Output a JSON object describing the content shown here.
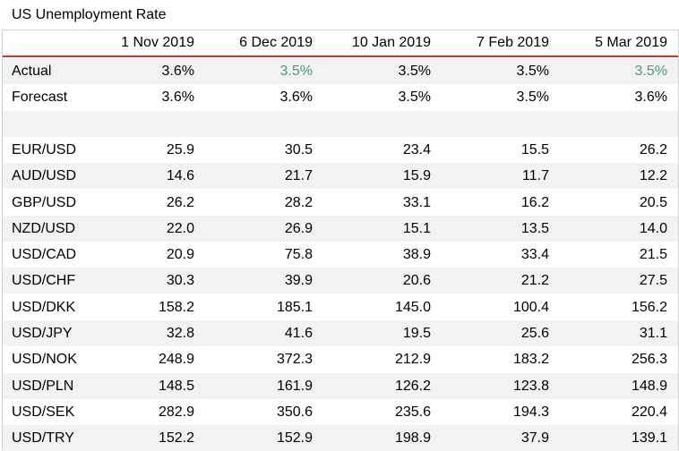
{
  "chart_data": {
    "type": "table",
    "title": "US Unemployment Rate",
    "columns": [
      "1 Nov 2019",
      "6 Dec 2019",
      "10 Jan 2019",
      "7 Feb 2019",
      "5 Mar 2019"
    ],
    "rows": [
      {
        "label": "Actual",
        "values": [
          "3.6%",
          "3.5%",
          "3.5%",
          "3.5%",
          "3.5%"
        ],
        "highlight": [
          false,
          true,
          false,
          false,
          true
        ]
      },
      {
        "label": "Forecast",
        "values": [
          "3.6%",
          "3.6%",
          "3.5%",
          "3.5%",
          "3.6%"
        ]
      },
      {
        "label": "",
        "values": [
          "",
          "",
          "",
          "",
          ""
        ],
        "spacer": true
      },
      {
        "label": "EUR/USD",
        "values": [
          "25.9",
          "30.5",
          "23.4",
          "15.5",
          "26.2"
        ]
      },
      {
        "label": "AUD/USD",
        "values": [
          "14.6",
          "21.7",
          "15.9",
          "11.7",
          "12.2"
        ]
      },
      {
        "label": "GBP/USD",
        "values": [
          "26.2",
          "28.2",
          "33.1",
          "16.2",
          "20.5"
        ]
      },
      {
        "label": "NZD/USD",
        "values": [
          "22.0",
          "26.9",
          "15.1",
          "13.5",
          "14.0"
        ]
      },
      {
        "label": "USD/CAD",
        "values": [
          "20.9",
          "75.8",
          "38.9",
          "33.4",
          "21.5"
        ]
      },
      {
        "label": "USD/CHF",
        "values": [
          "30.3",
          "39.9",
          "20.6",
          "21.2",
          "27.5"
        ]
      },
      {
        "label": "USD/DKK",
        "values": [
          "158.2",
          "185.1",
          "145.0",
          "100.4",
          "156.2"
        ]
      },
      {
        "label": "USD/JPY",
        "values": [
          "32.8",
          "41.6",
          "19.5",
          "25.6",
          "31.1"
        ]
      },
      {
        "label": "USD/NOK",
        "values": [
          "248.9",
          "372.3",
          "212.9",
          "183.2",
          "256.3"
        ]
      },
      {
        "label": "USD/PLN",
        "values": [
          "148.5",
          "161.9",
          "126.2",
          "123.8",
          "148.9"
        ]
      },
      {
        "label": "USD/SEK",
        "values": [
          "282.9",
          "350.6",
          "235.6",
          "194.3",
          "220.4"
        ]
      },
      {
        "label": "USD/TRY",
        "values": [
          "152.2",
          "152.9",
          "198.9",
          "37.9",
          "139.1"
        ]
      }
    ]
  },
  "colors": {
    "header_rule": "#c0392b",
    "highlight_text": "#3aa76d",
    "stripe": "#f2f2f2"
  }
}
